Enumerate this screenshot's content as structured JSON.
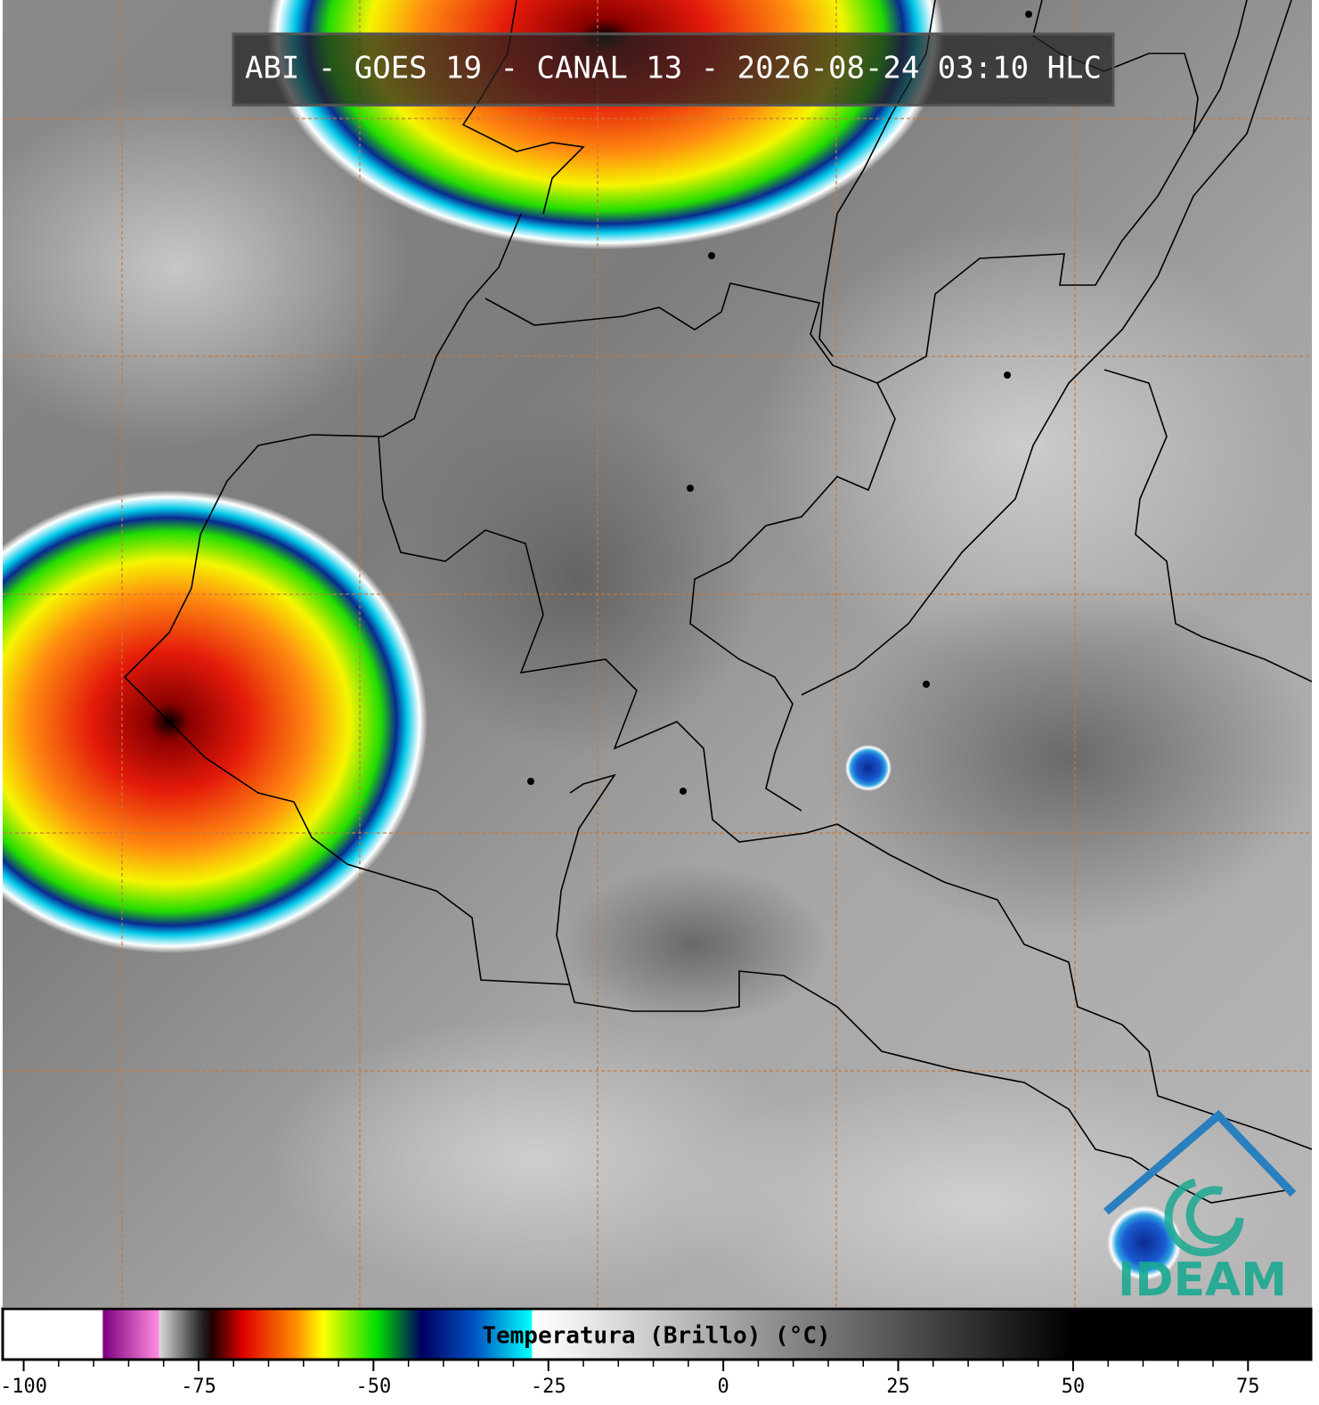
{
  "header": {
    "title": "ABI - GOES 19 - CANAL 13 - 2026-08-24 03:10 HLC"
  },
  "colorbar": {
    "label": "Temperatura (Brillo) (°C)",
    "range": [
      -103,
      84
    ],
    "ticks": [
      -100,
      -75,
      -50,
      -25,
      0,
      25,
      50,
      75
    ]
  },
  "logo": {
    "text": "IDEAM"
  }
}
